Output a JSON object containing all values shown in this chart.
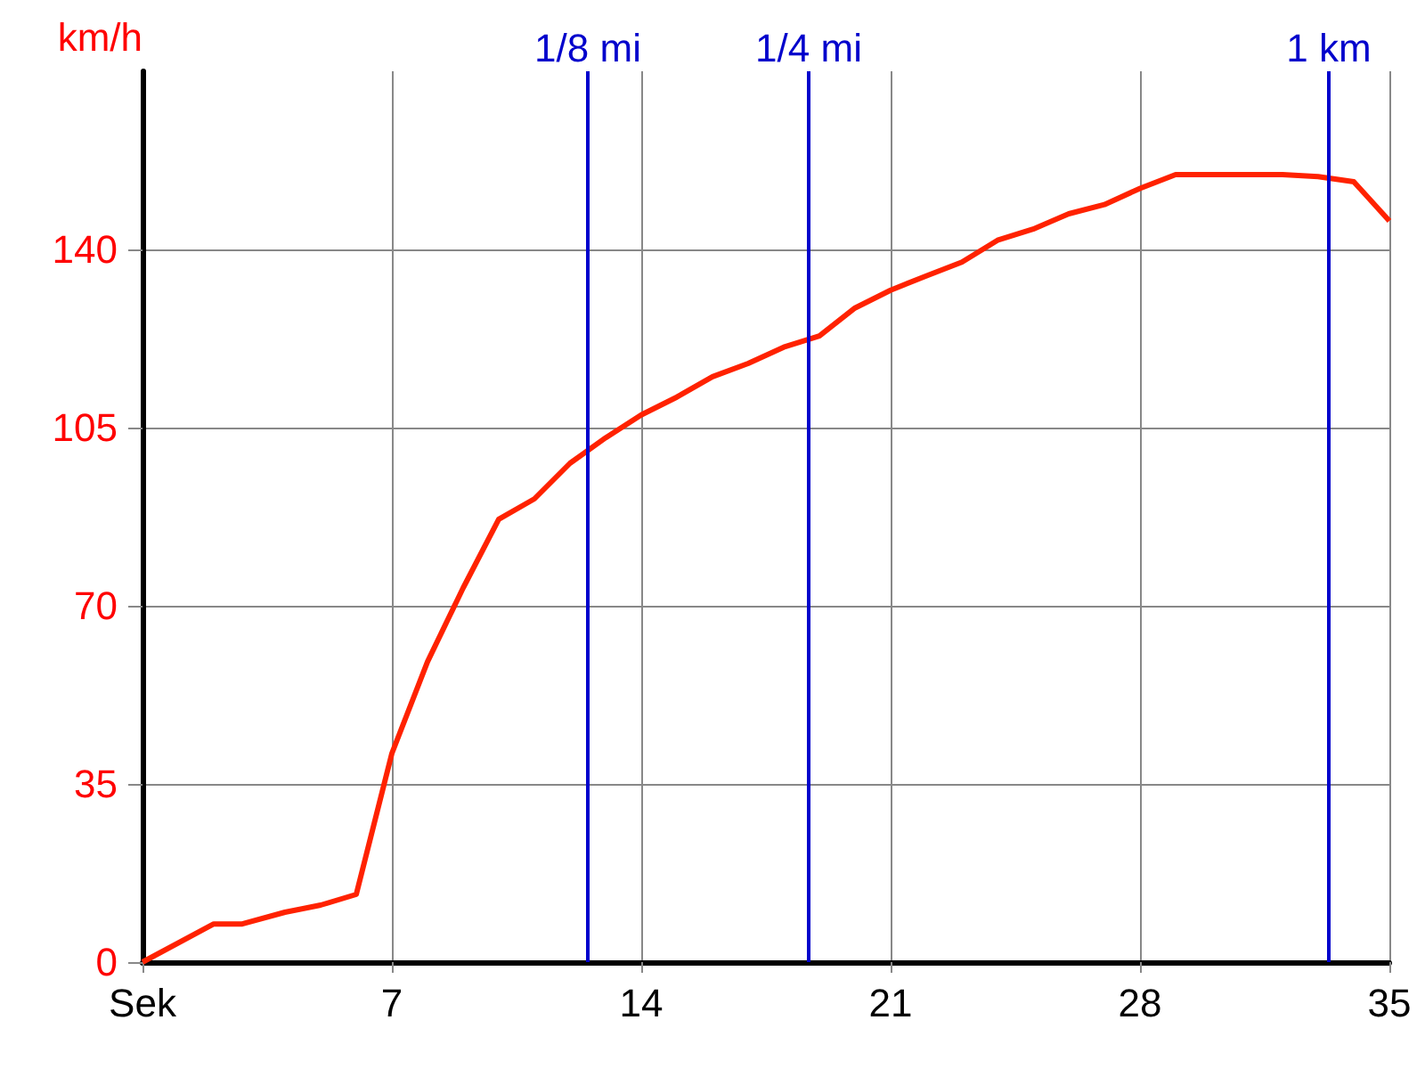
{
  "chart_data": {
    "type": "line",
    "ylabel": "km/h",
    "x": [
      0,
      2,
      2.8,
      4,
      5,
      6,
      7,
      8,
      9,
      10,
      11,
      12,
      13,
      14,
      15,
      16,
      17,
      18,
      19,
      20,
      21,
      22,
      23,
      24,
      25,
      26,
      27,
      28,
      29,
      30,
      31,
      32,
      33,
      34,
      35
    ],
    "series": [
      {
        "color": "#ff2200",
        "values": [
          0,
          7.5,
          7.5,
          9.8,
          11.2,
          13.3,
          41,
          59,
          73.5,
          87,
          91,
          98,
          103,
          107.5,
          111,
          115,
          117.6,
          120.8,
          123,
          128.5,
          132,
          134.8,
          137.5,
          141.8,
          144,
          147,
          148.8,
          152,
          154.7,
          154.7,
          154.7,
          154.7,
          154.3,
          153.3,
          145.6
        ]
      }
    ],
    "xlim": [
      0,
      35
    ],
    "xticks": [
      {
        "value": 0,
        "label": "Sek"
      },
      7,
      14,
      21,
      28,
      35
    ],
    "ylim": [
      0,
      175
    ],
    "yticks": [
      0,
      35,
      70,
      105,
      140
    ],
    "grid": true,
    "marker": "none",
    "line_style": "solid",
    "ref_lines": [
      {
        "axis": "x",
        "value": 12.5,
        "label": "1/8 mi",
        "color": "#0000cc"
      },
      {
        "axis": "x",
        "value": 18.7,
        "label": "1/4 mi",
        "color": "#0000cc"
      },
      {
        "axis": "x",
        "value": 33.3,
        "label": "1 km",
        "color": "#0000cc"
      }
    ]
  }
}
